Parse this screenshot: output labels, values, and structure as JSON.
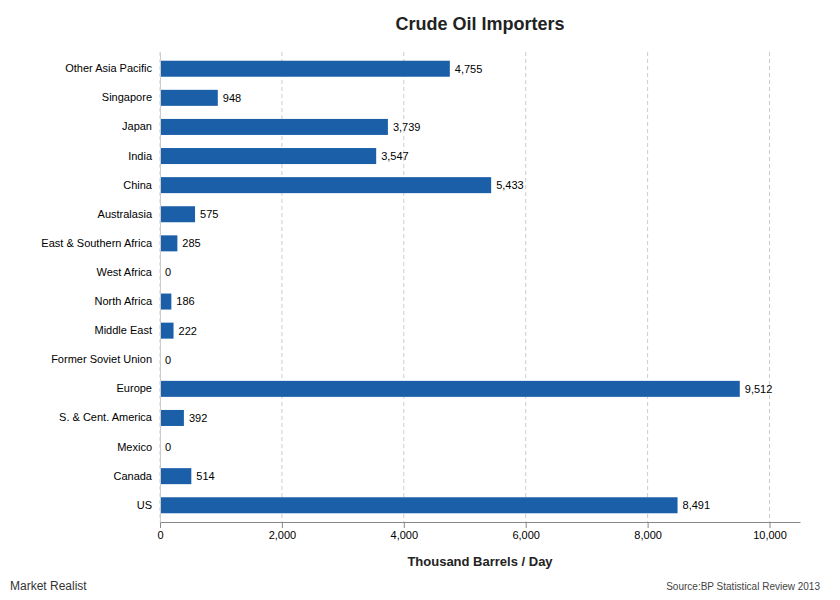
{
  "chart_data": {
    "type": "bar",
    "orientation": "horizontal",
    "title": "Crude Oil Importers",
    "xlabel": "Thousand Barrels / Day",
    "categories": [
      "US",
      "Canada",
      "Mexico",
      "S. & Cent. America",
      "Europe",
      "Former Soviet Union",
      "Middle East",
      "North Africa",
      "West Africa",
      "East & Southern Africa",
      "Australasia",
      "China",
      "India",
      "Japan",
      "Singapore",
      "Other Asia Pacific"
    ],
    "values": [
      8491,
      514,
      0,
      392,
      9512,
      0,
      222,
      186,
      0,
      285,
      575,
      5433,
      3547,
      3739,
      948,
      4755
    ],
    "value_labels": [
      "8,491",
      "514",
      "0",
      "392",
      "9,512",
      "0",
      "222",
      "186",
      "0",
      "285",
      "575",
      "5,433",
      "3,547",
      "3,739",
      "948",
      "4,755"
    ],
    "data_labels": true,
    "color": "#1a5fa8",
    "xlim": [
      0,
      10500
    ],
    "xticks": [
      0,
      {
        "value": 2000,
        "label": "2,000"
      },
      {
        "value": 4000,
        "label": "4,000"
      },
      {
        "value": 6000,
        "label": "6,000"
      },
      {
        "value": 8000,
        "label": "8,000"
      },
      {
        "value": 10000,
        "label": "10,000"
      }
    ],
    "grid": true,
    "annotations": [
      "Source:BP Statistical Review 2013",
      "Market Realist"
    ]
  }
}
